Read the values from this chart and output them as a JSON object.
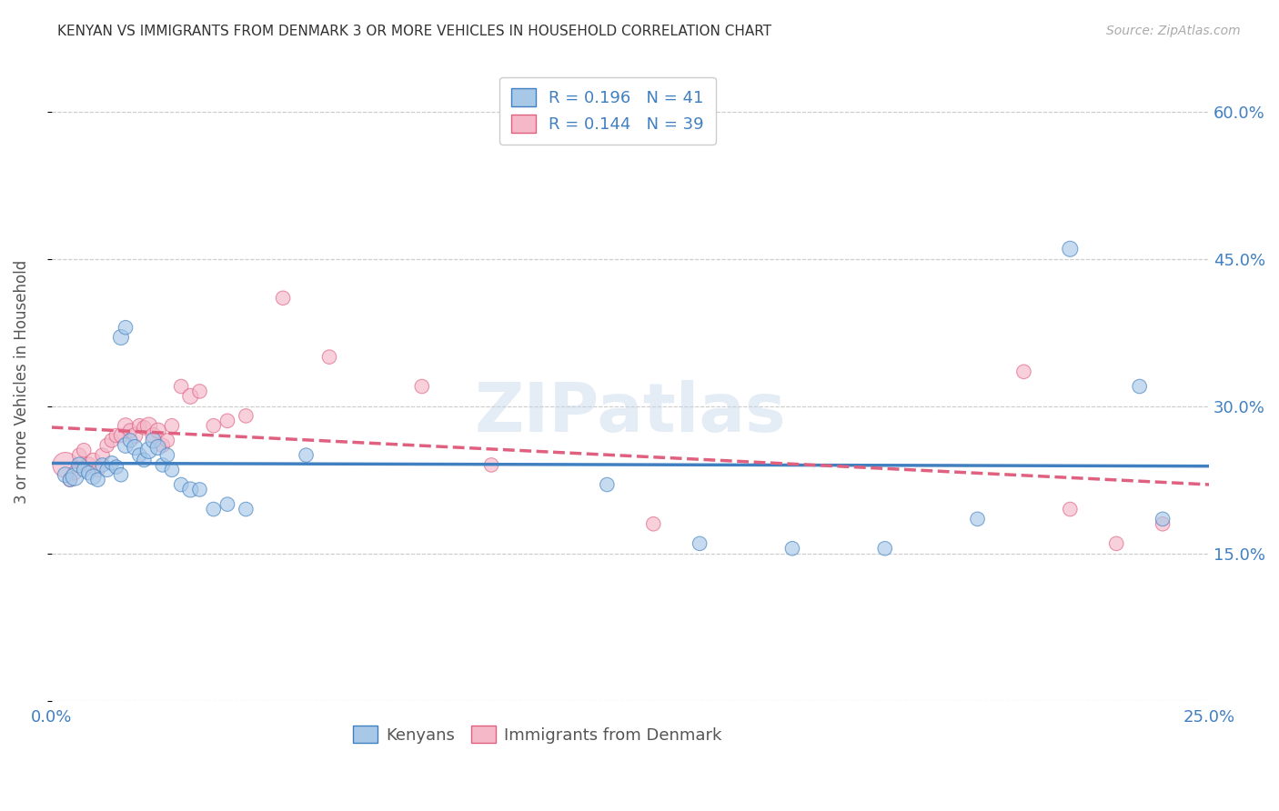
{
  "title": "KENYAN VS IMMIGRANTS FROM DENMARK 3 OR MORE VEHICLES IN HOUSEHOLD CORRELATION CHART",
  "source": "Source: ZipAtlas.com",
  "ylabel_label": "3 or more Vehicles in Household",
  "R_kenyan": 0.196,
  "N_kenyan": 41,
  "R_denmark": 0.144,
  "N_denmark": 39,
  "x_min": 0.0,
  "x_max": 0.25,
  "y_min": 0.0,
  "y_max": 0.65,
  "x_ticks": [
    0.0,
    0.05,
    0.1,
    0.15,
    0.2,
    0.25
  ],
  "x_tick_labels": [
    "0.0%",
    "",
    "",
    "",
    "",
    "25.0%"
  ],
  "y_ticks": [
    0.0,
    0.15,
    0.3,
    0.45,
    0.6
  ],
  "y_tick_labels_right": [
    "",
    "15.0%",
    "30.0%",
    "45.0%",
    "60.0%"
  ],
  "color_kenyan": "#a8c8e8",
  "color_denmark": "#f4b8c8",
  "trendline_color_kenyan": "#4080c0",
  "trendline_color_denmark": "#e06080",
  "watermark": "ZIPatlas",
  "kenyan_x": [
    0.003,
    0.004,
    0.005,
    0.006,
    0.007,
    0.008,
    0.009,
    0.01,
    0.011,
    0.012,
    0.013,
    0.014,
    0.015,
    0.016,
    0.017,
    0.018,
    0.019,
    0.02,
    0.021,
    0.022,
    0.023,
    0.024,
    0.025,
    0.026,
    0.028,
    0.03,
    0.032,
    0.035,
    0.038,
    0.042,
    0.015,
    0.016,
    0.055,
    0.12,
    0.14,
    0.16,
    0.18,
    0.2,
    0.22,
    0.235,
    0.24
  ],
  "kenyan_y": [
    0.23,
    0.225,
    0.228,
    0.24,
    0.235,
    0.232,
    0.228,
    0.225,
    0.24,
    0.235,
    0.242,
    0.238,
    0.23,
    0.26,
    0.265,
    0.258,
    0.25,
    0.245,
    0.255,
    0.265,
    0.258,
    0.24,
    0.25,
    0.235,
    0.22,
    0.215,
    0.215,
    0.195,
    0.2,
    0.195,
    0.37,
    0.38,
    0.25,
    0.22,
    0.16,
    0.155,
    0.155,
    0.185,
    0.46,
    0.32,
    0.185
  ],
  "kenyan_size": [
    30,
    25,
    40,
    30,
    25,
    25,
    30,
    25,
    25,
    25,
    25,
    25,
    25,
    30,
    25,
    30,
    25,
    25,
    35,
    30,
    30,
    25,
    25,
    25,
    25,
    30,
    25,
    25,
    25,
    25,
    30,
    25,
    25,
    25,
    25,
    25,
    25,
    25,
    30,
    25,
    25
  ],
  "denmark_x": [
    0.003,
    0.004,
    0.005,
    0.006,
    0.007,
    0.008,
    0.009,
    0.01,
    0.011,
    0.012,
    0.013,
    0.014,
    0.015,
    0.016,
    0.017,
    0.018,
    0.019,
    0.02,
    0.021,
    0.022,
    0.023,
    0.024,
    0.025,
    0.026,
    0.028,
    0.03,
    0.032,
    0.035,
    0.038,
    0.042,
    0.05,
    0.06,
    0.08,
    0.095,
    0.13,
    0.21,
    0.22,
    0.23,
    0.24
  ],
  "denmark_y": [
    0.24,
    0.225,
    0.232,
    0.25,
    0.255,
    0.24,
    0.245,
    0.235,
    0.25,
    0.26,
    0.265,
    0.27,
    0.27,
    0.28,
    0.275,
    0.27,
    0.28,
    0.278,
    0.28,
    0.27,
    0.275,
    0.26,
    0.265,
    0.28,
    0.32,
    0.31,
    0.315,
    0.28,
    0.285,
    0.29,
    0.41,
    0.35,
    0.32,
    0.24,
    0.18,
    0.335,
    0.195,
    0.16,
    0.18
  ],
  "denmark_size": [
    80,
    25,
    25,
    25,
    25,
    30,
    25,
    25,
    25,
    25,
    25,
    25,
    25,
    30,
    25,
    30,
    25,
    25,
    35,
    30,
    30,
    25,
    25,
    25,
    25,
    30,
    25,
    25,
    25,
    25,
    25,
    25,
    25,
    25,
    25,
    25,
    25,
    25,
    25
  ]
}
